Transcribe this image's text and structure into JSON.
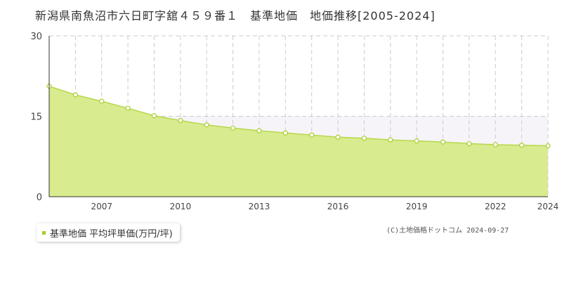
{
  "title": "新潟県南魚沼市六日町字舘４５９番１　基準地価　地価推移[2005-2024]",
  "legend": {
    "label": "基準地価 平均坪単価(万円/坪)",
    "color": "#a6cf2a"
  },
  "copyright": "(C)土地価格ドットコム 2024-09-27",
  "colors": {
    "fill": "#d9eb8f",
    "line": "#b5d84a",
    "point_fill": "#ffffff",
    "point_stroke": "#a6cf2a",
    "band": "#f7f4f9"
  },
  "chart_data": {
    "type": "area",
    "x": [
      2005,
      2006,
      2007,
      2008,
      2009,
      2010,
      2011,
      2012,
      2013,
      2014,
      2015,
      2016,
      2017,
      2018,
      2019,
      2020,
      2021,
      2022,
      2023,
      2024
    ],
    "series": [
      {
        "name": "基準地価 平均坪単価(万円/坪)",
        "values": [
          20.6,
          19.0,
          17.8,
          16.5,
          15.1,
          14.2,
          13.4,
          12.8,
          12.3,
          11.9,
          11.5,
          11.1,
          10.9,
          10.6,
          10.4,
          10.2,
          9.9,
          9.7,
          9.6,
          9.5
        ]
      }
    ],
    "xticks": [
      "2007",
      "2010",
      "2013",
      "2016",
      "2019",
      "2022",
      "2024"
    ],
    "yticks": [
      "0",
      "15",
      "30"
    ],
    "ylim": [
      0,
      30
    ],
    "xlim": [
      2005,
      2024
    ],
    "grid": true
  }
}
